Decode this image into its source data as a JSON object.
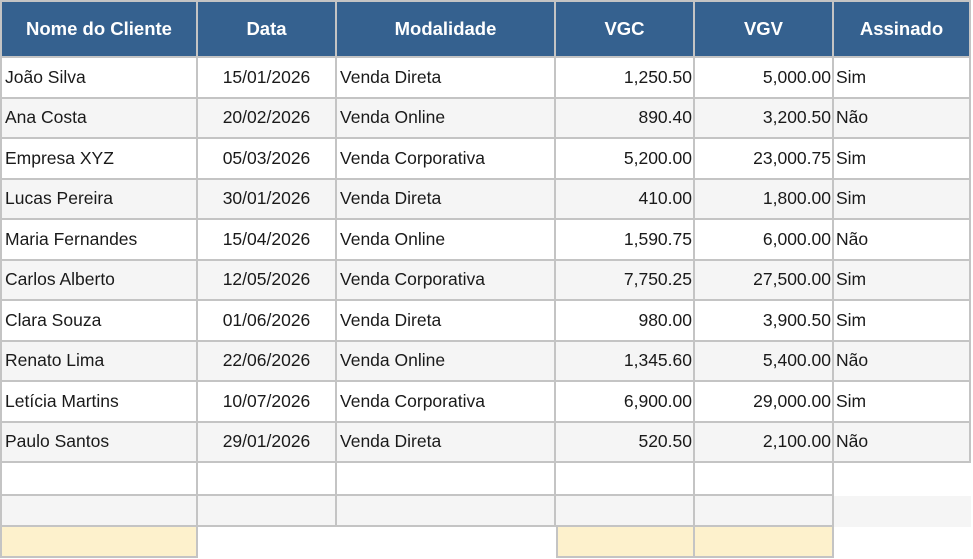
{
  "table": {
    "header": [
      "Nome do Cliente",
      "Data",
      "Modalidade",
      "VGC",
      "VGV",
      "Assinado"
    ],
    "rows": [
      {
        "nome": "João Silva",
        "data": "15/01/2026",
        "modalidade": "Venda Direta",
        "vgc": "1,250.50",
        "vgv": "5,000.00",
        "assinado": "Sim"
      },
      {
        "nome": "Ana Costa",
        "data": "20/02/2026",
        "modalidade": "Venda Online",
        "vgc": "890.40",
        "vgv": "3,200.50",
        "assinado": "Não"
      },
      {
        "nome": "Empresa XYZ",
        "data": "05/03/2026",
        "modalidade": "Venda Corporativa",
        "vgc": "5,200.00",
        "vgv": "23,000.75",
        "assinado": "Sim"
      },
      {
        "nome": "Lucas Pereira",
        "data": "30/01/2026",
        "modalidade": "Venda Direta",
        "vgc": "410.00",
        "vgv": "1,800.00",
        "assinado": "Sim"
      },
      {
        "nome": "Maria Fernandes",
        "data": "15/04/2026",
        "modalidade": "Venda Online",
        "vgc": "1,590.75",
        "vgv": "6,000.00",
        "assinado": "Não"
      },
      {
        "nome": "Carlos Alberto",
        "data": "12/05/2026",
        "modalidade": "Venda Corporativa",
        "vgc": "7,750.25",
        "vgv": "27,500.00",
        "assinado": "Sim"
      },
      {
        "nome": "Clara Souza",
        "data": "01/06/2026",
        "modalidade": "Venda Direta",
        "vgc": "980.00",
        "vgv": "3,900.50",
        "assinado": "Sim"
      },
      {
        "nome": "Renato Lima",
        "data": "22/06/2026",
        "modalidade": "Venda Online",
        "vgc": "1,345.60",
        "vgv": "5,400.00",
        "assinado": "Não"
      },
      {
        "nome": "Letícia Martins",
        "data": "10/07/2026",
        "modalidade": "Venda Corporativa",
        "vgc": "6,900.00",
        "vgv": "29,000.00",
        "assinado": "Sim"
      },
      {
        "nome": "Paulo Santos",
        "data": "29/01/2026",
        "modalidade": "Venda Direta",
        "vgc": "520.50",
        "vgv": "2,100.00",
        "assinado": "Não"
      }
    ],
    "empty_row_count": 2,
    "highlighted_input_cells": [
      "nome",
      "vgc",
      "vgv"
    ]
  },
  "colors": {
    "header_bg": "#35618f",
    "header_text": "#ffffff",
    "body_text": "#1a1a1a",
    "gridline": "#c4c4c4",
    "banded_row_bg": "#f5f5f5",
    "highlight_cell_bg": "#fdf1cc"
  }
}
